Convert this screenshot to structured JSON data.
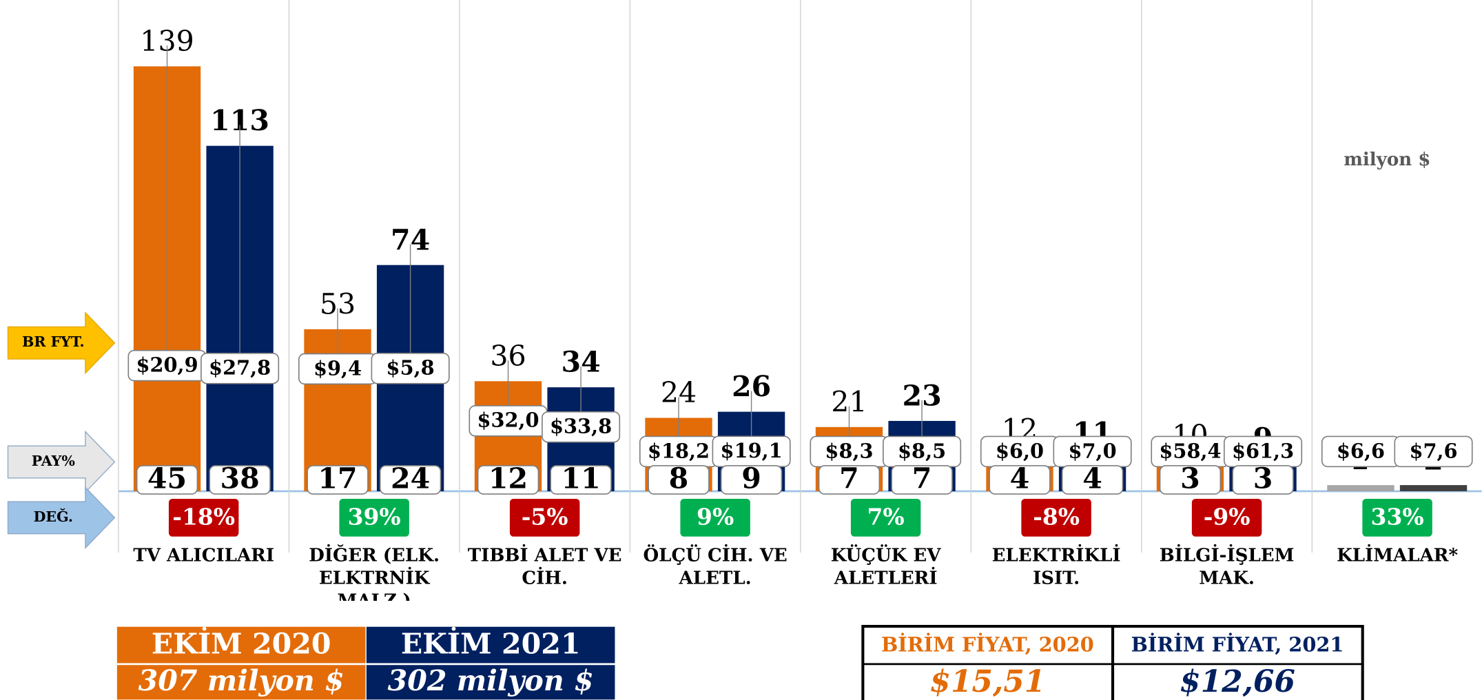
{
  "chart_data": {
    "type": "bar",
    "unit_note": "milyon $",
    "side_labels": [
      "BR FYT.",
      "PAY%",
      "DEĞ."
    ],
    "categories": [
      "TV ALICILARI",
      "DİĞER (ELK.\nELKTRNİK MALZ.)",
      "TIBBİ ALET VE\nCİH.",
      "ÖLÇÜ CİH. VE\nALETL.",
      "KÜÇÜK EV\nALETLERİ",
      "ELEKTRİKLİ ISIT.",
      "BİLGİ-İŞLEM MAK.",
      "KLİMALAR*"
    ],
    "ylim": [
      0,
      140
    ],
    "series": [
      {
        "name": "EKİM 2020",
        "colors": [
          "#e36c09",
          "#e36c09",
          "#e36c09",
          "#e36c09",
          "#e36c09",
          "#e36c09",
          "#e36c09",
          "#a6a6a6"
        ],
        "values": [
          139,
          53,
          36,
          24,
          21,
          12,
          10,
          2
        ],
        "unit_prices": [
          20.9,
          9.4,
          32.0,
          18.2,
          8.3,
          6.0,
          58.4,
          6.6
        ],
        "unit_price_labels": [
          "$20,9",
          "$9,4",
          "$32,0",
          "$18,2",
          "$8,3",
          "$6,0",
          "$58,4",
          "$6,6"
        ],
        "shares": [
          45,
          17,
          12,
          8,
          7,
          4,
          3,
          null
        ],
        "total": 307,
        "total_label": "307 milyon $",
        "avg_unit_price_title": "BİRİM FİYAT, 2020",
        "avg_unit_price": 15.51,
        "avg_unit_price_label": "$15,51"
      },
      {
        "name": "EKİM 2021",
        "colors": [
          "#002060",
          "#002060",
          "#002060",
          "#002060",
          "#002060",
          "#002060",
          "#002060",
          "#404040"
        ],
        "values": [
          113,
          74,
          34,
          26,
          23,
          11,
          9,
          2
        ],
        "unit_prices": [
          27.8,
          5.8,
          33.8,
          19.1,
          8.5,
          7.0,
          61.3,
          7.6
        ],
        "unit_price_labels": [
          "$27,8",
          "$5,8",
          "$33,8",
          "$19,1",
          "$8,5",
          "$7,0",
          "$61,3",
          "$7,6"
        ],
        "shares": [
          38,
          24,
          11,
          9,
          7,
          4,
          3,
          null
        ],
        "total": 302,
        "total_label": "302 milyon $",
        "avg_unit_price_title": "BİRİM FİYAT, 2021",
        "avg_unit_price": 12.66,
        "avg_unit_price_label": "$12,66"
      }
    ],
    "changes": [
      -18,
      39,
      -5,
      9,
      7,
      -8,
      -9,
      33
    ],
    "change_labels": [
      "-18%",
      "39%",
      "-5%",
      "9%",
      "7%",
      "-8%",
      "-9%",
      "33%"
    ]
  }
}
